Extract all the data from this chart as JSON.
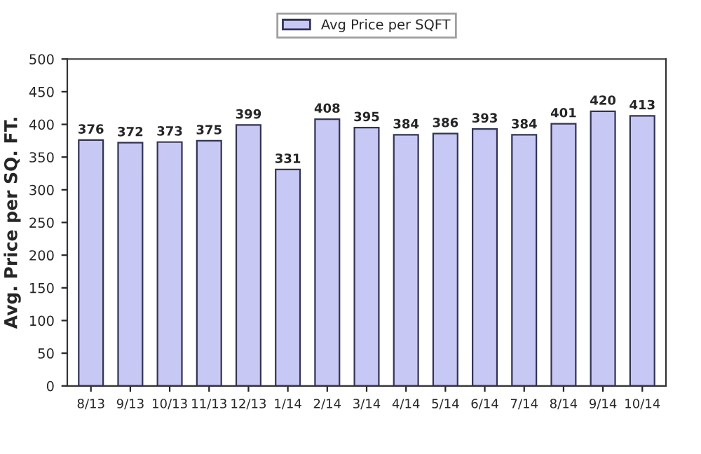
{
  "chart_data": {
    "type": "bar",
    "ylabel": "Avg. Price per SQ. FT.",
    "categories": [
      "8/13",
      "9/13",
      "10/13",
      "11/13",
      "12/13",
      "1/14",
      "2/14",
      "3/14",
      "4/14",
      "5/14",
      "6/14",
      "7/14",
      "8/14",
      "9/14",
      "10/14"
    ],
    "series": [
      {
        "name": "Avg Price per SQFT",
        "color": "#c8c8f4",
        "values": [
          376,
          372,
          373,
          375,
          399,
          331,
          408,
          395,
          384,
          386,
          393,
          384,
          401,
          420,
          413
        ]
      }
    ],
    "data_labels": true,
    "ylim": [
      0,
      500
    ],
    "yticks": [
      0,
      50,
      100,
      150,
      200,
      250,
      300,
      350,
      400,
      450,
      500
    ],
    "grid": false,
    "legend": "top"
  }
}
